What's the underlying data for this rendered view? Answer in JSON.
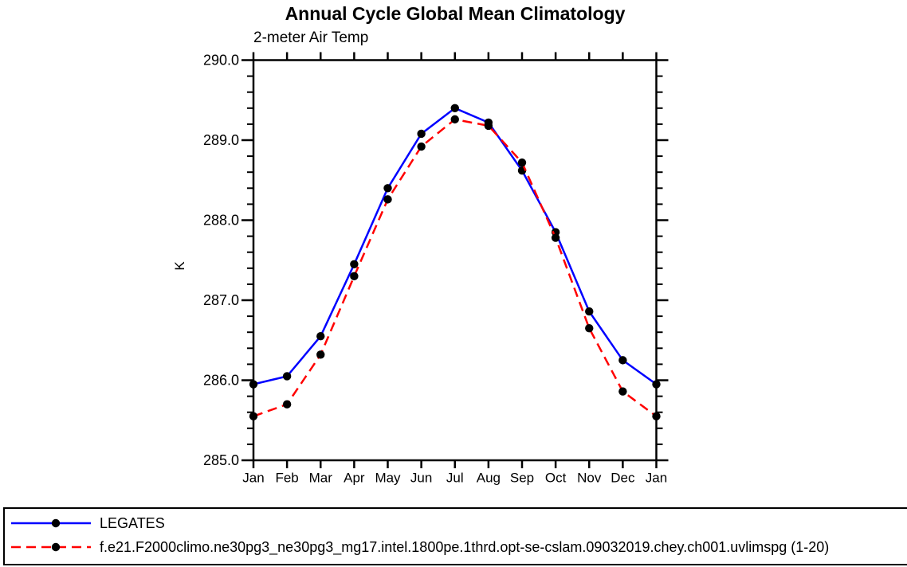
{
  "chart_data": {
    "type": "line",
    "title": "Annual Cycle Global Mean Climatology",
    "subtitle": "2-meter Air Temp",
    "ylabel": "K",
    "xlabel": "",
    "x_categories": [
      "Jan",
      "Feb",
      "Mar",
      "Apr",
      "May",
      "Jun",
      "Jul",
      "Aug",
      "Sep",
      "Oct",
      "Nov",
      "Dec",
      "Jan"
    ],
    "ylim": [
      285.0,
      290.0
    ],
    "y_major_tick_values": [
      290.0,
      289.0,
      288.0,
      287.0,
      286.0,
      285.0
    ],
    "y_major_tick_labels": [
      "290.0",
      "289.0",
      "288.0",
      "287.0",
      "286.0",
      "285.0"
    ],
    "y_minor_step": 0.2,
    "grid": false,
    "legend_position": "bottom-box",
    "axis_color": "#000000",
    "marker_color": "#000000",
    "series": [
      {
        "name": "LEGATES",
        "color": "#0000ff",
        "line_style": "solid",
        "marker": "filled-circle",
        "values": [
          285.95,
          286.05,
          286.55,
          287.45,
          288.4,
          289.08,
          289.4,
          289.22,
          288.62,
          287.85,
          286.86,
          286.25,
          285.95
        ]
      },
      {
        "name": "f.e21.F2000climo.ne30pg3_ne30pg3_mg17.intel.1800pe.1thrd.opt-se-cslam.09032019.chey.ch001.uvlimspg (1-20)",
        "color": "#ff0000",
        "line_style": "dashed",
        "marker": "filled-circle",
        "values": [
          285.55,
          285.7,
          286.32,
          287.3,
          288.26,
          288.92,
          289.26,
          289.18,
          288.72,
          287.78,
          286.65,
          285.86,
          285.55
        ]
      }
    ]
  }
}
